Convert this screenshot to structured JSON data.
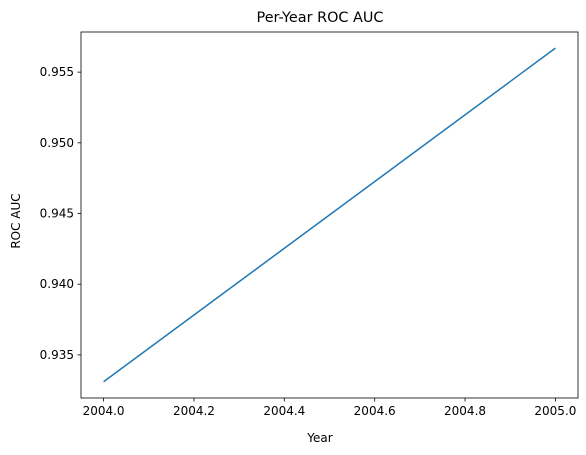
{
  "chart_data": {
    "type": "line",
    "title": "Per-Year ROC AUC",
    "xlabel": "Year",
    "ylabel": "ROC AUC",
    "xlim": [
      2003.95,
      2005.05
    ],
    "ylim": [
      0.93195,
      0.95784
    ],
    "x_ticks": [
      2004.0,
      2004.2,
      2004.4,
      2004.6,
      2004.8,
      2005.0
    ],
    "y_ticks": [
      0.935,
      0.94,
      0.945,
      0.95,
      0.955
    ],
    "grid": false,
    "series": [
      {
        "x": [
          2004.0,
          2005.0
        ],
        "y": [
          0.9331,
          0.9567
        ],
        "color": "#1f77b4"
      }
    ]
  }
}
